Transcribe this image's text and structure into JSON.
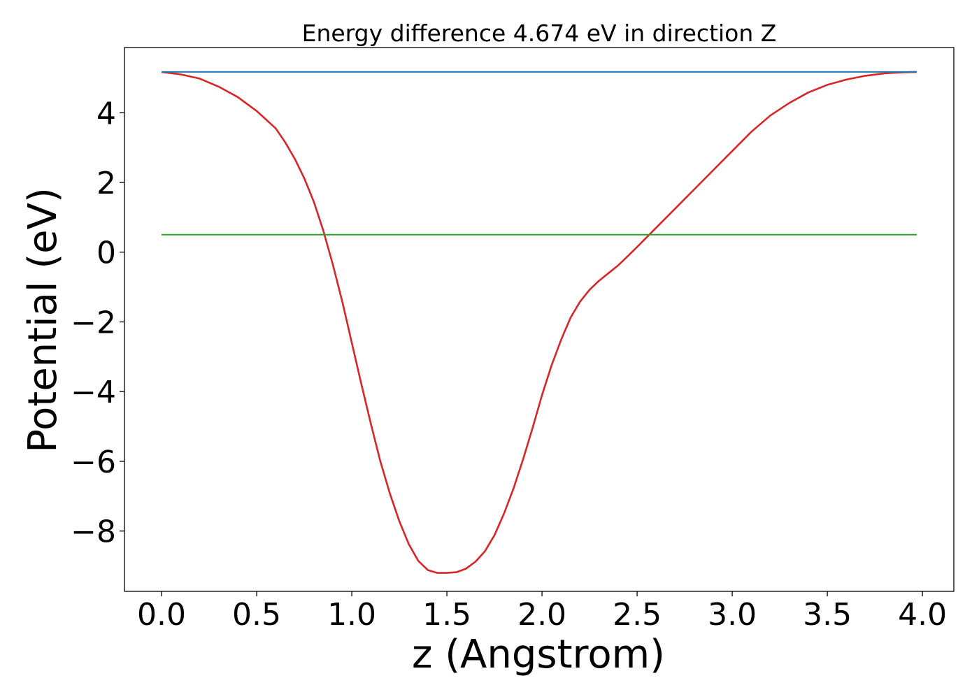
{
  "chart_data": {
    "type": "line",
    "title": "Energy difference 4.674 eV in direction Z",
    "xlabel": "z (Angstrom)",
    "ylabel": "Potential (eV)",
    "xlim": [
      -0.195,
      4.165
    ],
    "ylim": [
      -9.73,
      5.87
    ],
    "xticks": [
      0.0,
      0.5,
      1.0,
      1.5,
      2.0,
      2.5,
      3.0,
      3.5,
      4.0
    ],
    "xtick_labels": [
      "0.0",
      "0.5",
      "1.0",
      "1.5",
      "2.0",
      "2.5",
      "3.0",
      "3.5",
      "4.0"
    ],
    "yticks": [
      -8,
      -6,
      -4,
      -2,
      0,
      2,
      4
    ],
    "ytick_labels": [
      "−8",
      "−6",
      "−4",
      "−2",
      "0",
      "2",
      "4"
    ],
    "grid": false,
    "series": [
      {
        "color": "#d62728",
        "x": [
          0.0,
          0.1,
          0.2,
          0.3,
          0.4,
          0.5,
          0.6,
          0.65,
          0.7,
          0.75,
          0.8,
          0.85,
          0.9,
          0.95,
          1.0,
          1.05,
          1.1,
          1.15,
          1.2,
          1.25,
          1.3,
          1.35,
          1.4,
          1.45,
          1.5,
          1.55,
          1.6,
          1.65,
          1.7,
          1.75,
          1.8,
          1.85,
          1.9,
          1.95,
          2.0,
          2.05,
          2.1,
          2.15,
          2.2,
          2.25,
          2.3,
          2.35,
          2.4,
          2.45,
          2.5,
          2.6,
          2.7,
          2.8,
          2.9,
          3.0,
          3.1,
          3.2,
          3.3,
          3.4,
          3.5,
          3.6,
          3.7,
          3.8,
          3.9,
          3.97
        ],
        "values": [
          5.17,
          5.1,
          4.98,
          4.75,
          4.45,
          4.05,
          3.55,
          3.15,
          2.68,
          2.12,
          1.45,
          0.62,
          -0.35,
          -1.42,
          -2.6,
          -3.78,
          -4.92,
          -6.0,
          -6.92,
          -7.72,
          -8.38,
          -8.86,
          -9.12,
          -9.2,
          -9.2,
          -9.18,
          -9.08,
          -8.88,
          -8.58,
          -8.12,
          -7.5,
          -6.78,
          -5.95,
          -5.05,
          -4.1,
          -3.25,
          -2.52,
          -1.88,
          -1.42,
          -1.08,
          -0.82,
          -0.6,
          -0.38,
          -0.12,
          0.15,
          0.7,
          1.25,
          1.8,
          2.35,
          2.9,
          3.45,
          3.92,
          4.28,
          4.58,
          4.8,
          4.95,
          5.06,
          5.13,
          5.16,
          5.17
        ]
      },
      {
        "color": "#1f77b4",
        "x": [
          0.0,
          3.97
        ],
        "values": [
          5.17,
          5.17
        ]
      },
      {
        "color": "#2ca02c",
        "x": [
          0.0,
          3.97
        ],
        "values": [
          0.5,
          0.5
        ]
      }
    ]
  }
}
